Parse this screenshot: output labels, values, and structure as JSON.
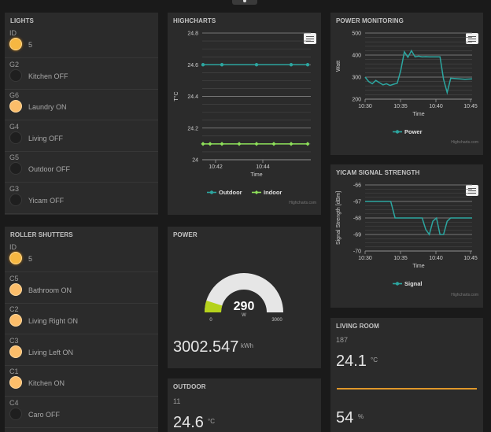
{
  "lights": {
    "title": "LIGHTS",
    "rows": [
      {
        "id": "ID",
        "label": "5",
        "state": "on"
      },
      {
        "id": "G2",
        "label": "Kitchen OFF",
        "state": "off"
      },
      {
        "id": "G6",
        "label": "Laundry ON",
        "state": "soft"
      },
      {
        "id": "G4",
        "label": "Living OFF",
        "state": "off"
      },
      {
        "id": "G5",
        "label": "Outdoor OFF",
        "state": "off"
      },
      {
        "id": "G3",
        "label": "Yicam OFF",
        "state": "off"
      }
    ]
  },
  "shutters": {
    "title": "ROLLER SHUTTERS",
    "rows": [
      {
        "id": "ID",
        "label": "5",
        "state": "on"
      },
      {
        "id": "C5",
        "label": "Bathroom ON",
        "state": "soft"
      },
      {
        "id": "C2",
        "label": "Living Right ON",
        "state": "soft"
      },
      {
        "id": "C3",
        "label": "Living Left ON",
        "state": "soft"
      },
      {
        "id": "C1",
        "label": "Kitchen ON",
        "state": "soft"
      },
      {
        "id": "C4",
        "label": "Caro OFF",
        "state": "off"
      }
    ]
  },
  "highcharts_panel": {
    "title": "HIGHCHARTS",
    "credits": "Highcharts.com"
  },
  "power_panel": {
    "title": "POWER",
    "gauge_value": "290",
    "gauge_unit": "W",
    "gauge_min": "0",
    "gauge_max": "3000",
    "energy": "3002.547",
    "energy_unit": "kWh"
  },
  "outdoor_panel": {
    "title": "OUTDOOR",
    "id": "11",
    "temp": "24.6",
    "temp_unit": "°C"
  },
  "powermon_panel": {
    "title": "POWER MONITORING",
    "credits": "Highcharts.com"
  },
  "yicam_panel": {
    "title": "YICAM SIGNAL STRENGTH",
    "credits": "Highcharts.com"
  },
  "living_panel": {
    "title": "LIVING ROOM",
    "id": "187",
    "temp": "24.1",
    "temp_unit": "°C",
    "humidity": "54",
    "humidity_unit": "%"
  },
  "colors": {
    "accent_orange": "#f6b742",
    "outdoor_series": "#2ca6a0",
    "indoor_series": "#8ee05a",
    "gauge_fill": "#b5d21c"
  },
  "chart_data": [
    {
      "type": "line",
      "ylabel": "T°C",
      "xlabel": "Time",
      "ylim": [
        24,
        24.8
      ],
      "yticks": [
        "24",
        "24.2",
        "24.4",
        "24.6",
        "24.8"
      ],
      "xticks": [
        "10:42",
        "10:44"
      ],
      "x": [
        "10:41",
        "10:41.7",
        "10:42",
        "10:42.7",
        "10:43.3",
        "10:44",
        "10:44.7",
        "10:45.4"
      ],
      "series": [
        {
          "name": "Outdoor",
          "color": "#2ca6a0",
          "values": [
            24.6,
            24.6,
            24.6,
            24.6,
            24.6,
            24.6,
            24.6,
            24.6
          ],
          "markers": [
            1,
            0,
            1,
            0,
            1,
            0,
            1,
            1
          ]
        },
        {
          "name": "Indoor",
          "color": "#8ee05a",
          "values": [
            24.1,
            24.1,
            24.1,
            24.1,
            24.1,
            24.1,
            24.1,
            24.1
          ],
          "markers": [
            1,
            1,
            1,
            1,
            1,
            1,
            1,
            1
          ]
        }
      ],
      "legend": "bottom-center",
      "grid": true
    },
    {
      "type": "line",
      "ylabel": "Watt",
      "xlabel": "Time",
      "ylim": [
        200,
        500
      ],
      "yticks": [
        "200",
        "300",
        "400",
        "500"
      ],
      "xticks": [
        "10:30",
        "10:35",
        "10:40",
        "10:45"
      ],
      "series": [
        {
          "name": "Power",
          "color": "#2ca6a0",
          "points": [
            [
              0,
              300
            ],
            [
              0.5,
              280
            ],
            [
              1,
              270
            ],
            [
              1.5,
              285
            ],
            [
              2,
              275
            ],
            [
              2.5,
              265
            ],
            [
              3,
              270
            ],
            [
              3.5,
              262
            ],
            [
              4,
              268
            ],
            [
              4.5,
              272
            ],
            [
              5,
              330
            ],
            [
              5.5,
              415
            ],
            [
              6,
              390
            ],
            [
              6.5,
              420
            ],
            [
              7,
              392
            ],
            [
              7.5,
              395
            ],
            [
              8,
              392
            ],
            [
              8.5,
              393
            ],
            [
              9,
              392
            ],
            [
              10.5,
              392
            ],
            [
              11,
              290
            ],
            [
              11.5,
              230
            ],
            [
              12,
              295
            ],
            [
              14,
              290
            ],
            [
              15,
              292
            ]
          ]
        }
      ],
      "legend": "bottom-center",
      "grid": true
    },
    {
      "type": "line",
      "ylabel": "Signal Strength [dBm]",
      "xlabel": "Time",
      "ylim": [
        -70,
        -66
      ],
      "yticks": [
        "-70",
        "-69",
        "-68",
        "-67",
        "-66"
      ],
      "xticks": [
        "10:30",
        "10:35",
        "10:40",
        "10:45"
      ],
      "series": [
        {
          "name": "Signal",
          "color": "#2ca6a0",
          "points": [
            [
              0,
              -67
            ],
            [
              3.6,
              -67
            ],
            [
              4.2,
              -68
            ],
            [
              8,
              -68
            ],
            [
              8.5,
              -68.7
            ],
            [
              9,
              -69
            ],
            [
              9.5,
              -68.2
            ],
            [
              10,
              -68
            ],
            [
              10.5,
              -69
            ],
            [
              11,
              -69
            ],
            [
              11.5,
              -68.2
            ],
            [
              12,
              -68
            ],
            [
              15,
              -68
            ]
          ]
        }
      ],
      "legend": "bottom-center",
      "grid": true
    }
  ]
}
